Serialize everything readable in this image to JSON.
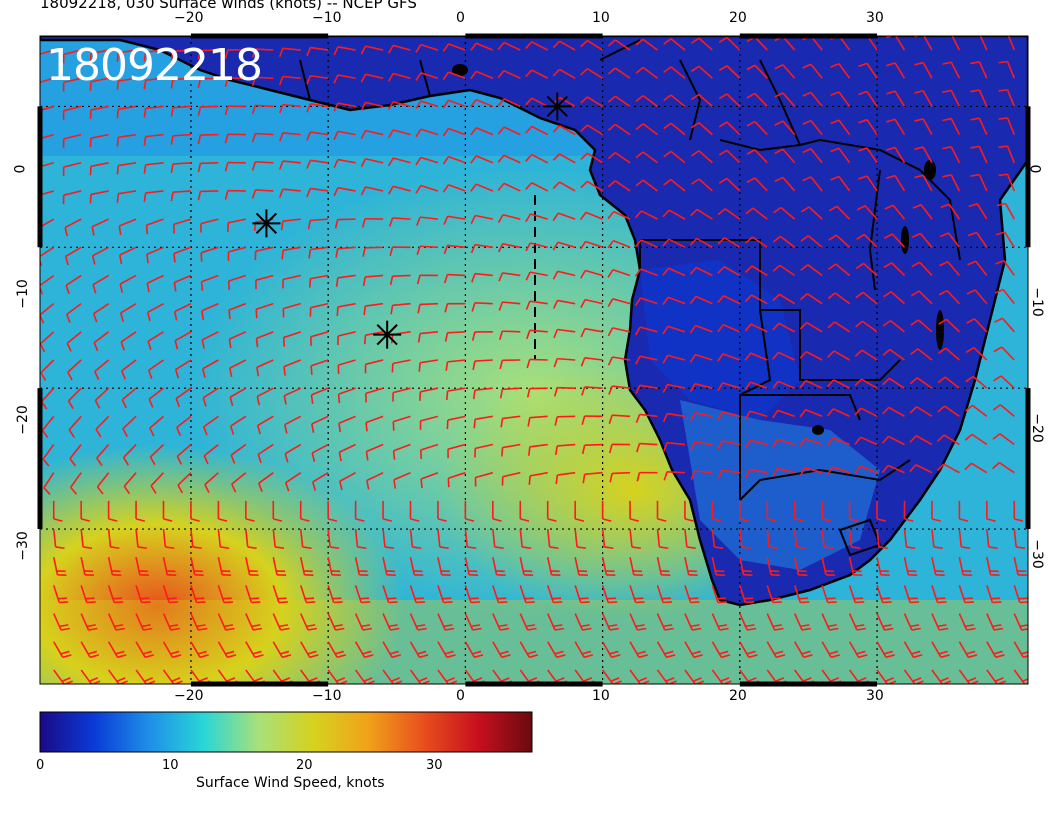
{
  "title": "18092218, 030 Surface winds (knots) -- NCEP GFS",
  "stamp": "18092218",
  "map": {
    "lon_range": [
      -31,
      41
    ],
    "lat_range": [
      5,
      -41
    ],
    "gridlines_lon": [
      -20,
      -10,
      0,
      10,
      20,
      30
    ],
    "gridlines_lat": [
      0,
      -10,
      -20,
      -30
    ],
    "top_ticks": [
      "−20",
      "−10",
      "0",
      "10",
      "20",
      "30"
    ],
    "bottom_ticks": [
      "−20",
      "−10",
      "0",
      "10",
      "20",
      "30"
    ],
    "left_ticks": [
      "0",
      "−10",
      "−20",
      "−30"
    ],
    "right_ticks": [
      "0",
      "−10",
      "−20",
      "−30"
    ],
    "barb_color": "#ff1a1a",
    "coast_color": "#000000",
    "markers": [
      {
        "name": "star",
        "lon": 6.7,
        "lat": 0.0
      },
      {
        "name": "star",
        "lon": -14.5,
        "lat": -8.3
      },
      {
        "name": "star",
        "lon": -5.7,
        "lat": -16.2
      }
    ]
  },
  "colorbar": {
    "label": "Surface Wind Speed, knots",
    "ticks": [
      "0",
      "10",
      "20",
      "30"
    ],
    "range": [
      0,
      38
    ],
    "colors": [
      "#1a0a86",
      "#0a3bd6",
      "#1f8fe8",
      "#2ad6d6",
      "#a8e07a",
      "#d6d21e",
      "#f0a21a",
      "#e8501e",
      "#c8101e",
      "#6a0a10"
    ]
  }
}
